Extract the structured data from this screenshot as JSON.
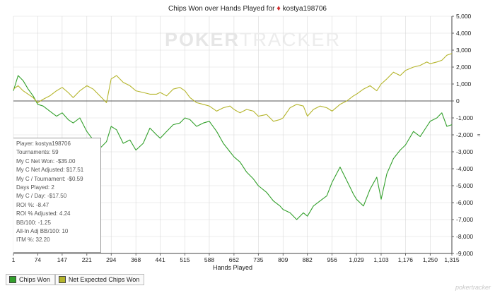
{
  "header": {
    "title_prefix": "Chips Won over Hands Played for",
    "player": "kostya198706",
    "suit_glyph": "♦"
  },
  "watermark": {
    "part1": "POKER",
    "part2": "TRACKER"
  },
  "footer_mark": "pokertracker",
  "y_unit": "≈",
  "stats": {
    "lines": [
      "Player: kostya198706",
      "Tournaments: 59",
      "My C Net Won: -$35.00",
      "My C Net Adjusted: $17.51",
      "My C / Tournament: -$0.59",
      "Days Played: 2",
      "My C / Day: -$17.50",
      "ROI %: -8.47",
      "ROI % Adjusted: 4.24",
      "BB/100: -1.25",
      "All-In Adj BB/100: 10",
      "ITM %: 32.20"
    ]
  },
  "legend": [
    {
      "label": "Chips Won",
      "color": "#33a02c"
    },
    {
      "label": "Net Expected Chips Won",
      "color": "#b5b52c"
    }
  ],
  "chart_data": {
    "type": "line",
    "title": "Chips Won over Hands Played for kostya198706",
    "xlabel": "Hands Played",
    "ylabel": "",
    "xlim": [
      1,
      1315
    ],
    "ylim": [
      -9000,
      5000
    ],
    "x_ticks": [
      "1",
      "74",
      "147",
      "221",
      "294",
      "368",
      "441",
      "515",
      "588",
      "662",
      "735",
      "809",
      "882",
      "956",
      "1,029",
      "1,103",
      "1,176",
      "1,250",
      "1,315"
    ],
    "y_ticks": [
      "5,000",
      "4,000",
      "3,000",
      "2,000",
      "1,000",
      "0",
      "-1,000",
      "-2,000",
      "-3,000",
      "-4,000",
      "-5,000",
      "-6,000",
      "-7,000",
      "-8,000",
      "-9,000"
    ],
    "y_tick_values": [
      5000,
      4000,
      3000,
      2000,
      1000,
      0,
      -1000,
      -2000,
      -3000,
      -4000,
      -5000,
      -6000,
      -7000,
      -8000,
      -9000
    ],
    "grid": true,
    "series": [
      {
        "name": "Chips Won",
        "color": "#33a02c",
        "x": [
          1,
          15,
          30,
          45,
          60,
          74,
          90,
          110,
          130,
          147,
          165,
          180,
          200,
          221,
          240,
          260,
          280,
          294,
          310,
          330,
          350,
          368,
          390,
          410,
          430,
          441,
          460,
          480,
          500,
          515,
          530,
          550,
          570,
          588,
          610,
          630,
          650,
          662,
          680,
          700,
          720,
          735,
          760,
          780,
          800,
          809,
          830,
          850,
          870,
          882,
          900,
          920,
          940,
          956,
          980,
          1000,
          1020,
          1029,
          1050,
          1070,
          1090,
          1103,
          1120,
          1140,
          1160,
          1176,
          1200,
          1220,
          1240,
          1250,
          1270,
          1285,
          1300,
          1315
        ],
        "values": [
          600,
          1500,
          1200,
          700,
          300,
          -200,
          -300,
          -600,
          -900,
          -700,
          -1100,
          -1300,
          -1000,
          -1800,
          -2300,
          -2800,
          -2400,
          -1500,
          -1700,
          -2500,
          -2300,
          -2900,
          -2500,
          -1600,
          -2000,
          -2200,
          -1800,
          -1400,
          -1300,
          -1000,
          -1100,
          -1500,
          -1300,
          -1200,
          -1800,
          -2500,
          -3000,
          -3300,
          -3600,
          -4200,
          -4600,
          -5000,
          -5400,
          -5900,
          -6200,
          -6400,
          -6600,
          -7000,
          -6600,
          -6800,
          -6200,
          -5900,
          -5600,
          -4800,
          -3900,
          -4700,
          -5500,
          -5800,
          -6200,
          -5200,
          -4500,
          -5800,
          -4300,
          -3400,
          -2900,
          -2600,
          -1800,
          -2100,
          -1500,
          -1200,
          -1000,
          -700,
          -1500,
          -1400
        ]
      },
      {
        "name": "Net Expected Chips Won",
        "color": "#b5b52c",
        "x": [
          1,
          15,
          30,
          45,
          60,
          74,
          90,
          110,
          130,
          147,
          165,
          180,
          200,
          221,
          240,
          260,
          280,
          294,
          310,
          330,
          350,
          368,
          390,
          410,
          430,
          441,
          460,
          480,
          500,
          515,
          530,
          550,
          570,
          588,
          610,
          630,
          650,
          662,
          680,
          700,
          720,
          735,
          760,
          780,
          800,
          809,
          830,
          850,
          870,
          882,
          900,
          920,
          940,
          956,
          980,
          1000,
          1020,
          1029,
          1050,
          1070,
          1090,
          1103,
          1120,
          1140,
          1160,
          1176,
          1200,
          1220,
          1240,
          1250,
          1270,
          1285,
          1300,
          1315
        ],
        "values": [
          700,
          900,
          600,
          400,
          200,
          -100,
          100,
          300,
          600,
          800,
          500,
          200,
          600,
          900,
          700,
          300,
          -100,
          1300,
          1500,
          1100,
          900,
          600,
          500,
          400,
          400,
          500,
          300,
          700,
          800,
          600,
          200,
          -100,
          -200,
          -300,
          -600,
          -400,
          -300,
          -500,
          -700,
          -500,
          -600,
          -900,
          -800,
          -1200,
          -1100,
          -1000,
          -400,
          -200,
          -300,
          -900,
          -500,
          -300,
          -400,
          -600,
          -200,
          0,
          300,
          400,
          700,
          900,
          600,
          1000,
          1300,
          1700,
          1500,
          1800,
          2000,
          2100,
          2300,
          2200,
          2300,
          2400,
          2700,
          2800
        ]
      }
    ]
  }
}
